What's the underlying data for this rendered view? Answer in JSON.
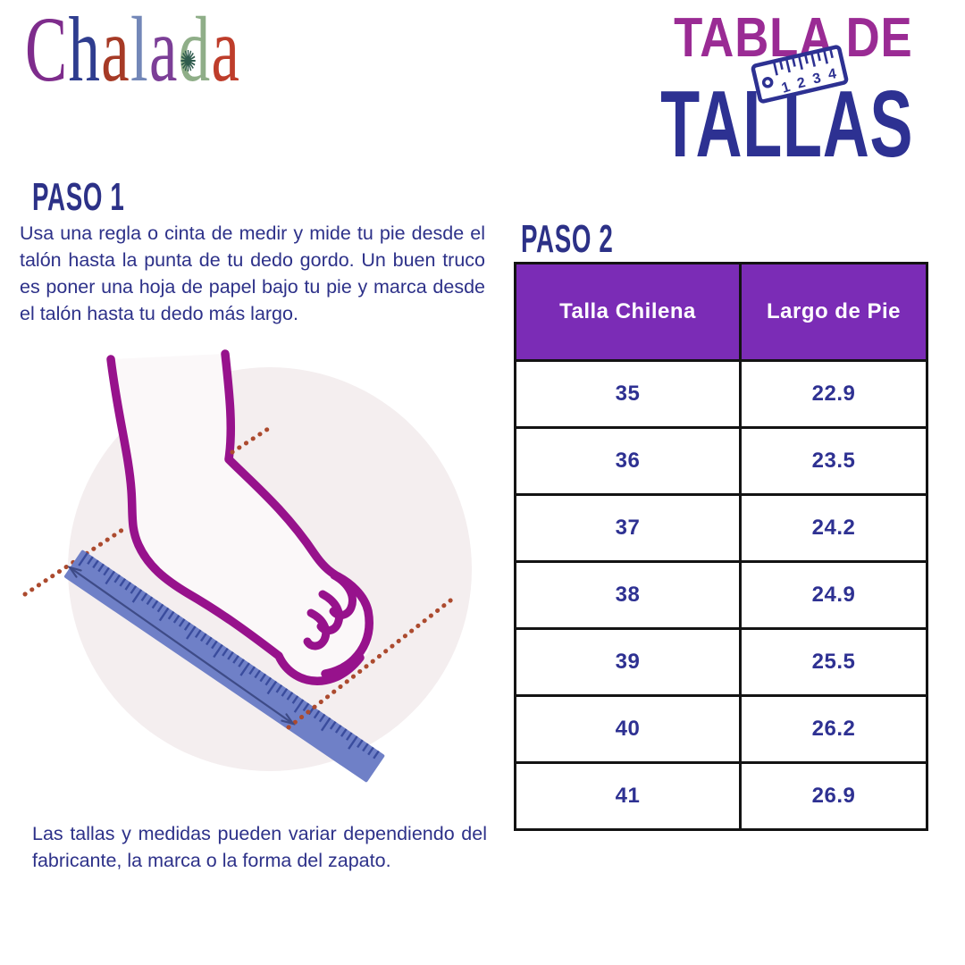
{
  "logo": {
    "name": "Chalada",
    "letters": [
      {
        "char": "C",
        "color": "#7E2C8C"
      },
      {
        "char": "h",
        "color": "#2F3D8F"
      },
      {
        "char": "a",
        "color": "#A63A26"
      },
      {
        "char": "l",
        "color": "#7387B8"
      },
      {
        "char": "a",
        "color": "#7C3F97"
      },
      {
        "char": "d",
        "color": "#8FAE88"
      },
      {
        "char": "a",
        "color": "#BE3D2B"
      }
    ],
    "d_ornament": "✺",
    "d_ornament_color": "#2F5B4D"
  },
  "title": {
    "line1": "TABLA DE",
    "line2": "TALLAS",
    "line1_color": "#9A2B94",
    "line2_color": "#2D3192",
    "ruler_icon_numbers": [
      "1",
      "2",
      "3",
      "4"
    ]
  },
  "step1": {
    "heading": "PASO 1",
    "body": "Usa una regla o cinta de medir y mide tu pie desde el talón hasta la punta de tu dedo gordo. Un buen truco es poner una hoja de papel bajo tu pie y marca desde el talón hasta tu dedo más largo."
  },
  "step2": {
    "heading": "PASO 2"
  },
  "size_table": {
    "headers": [
      "Talla Chilena",
      "Largo de Pie"
    ],
    "rows": [
      {
        "talla": "35",
        "largo": "22.9"
      },
      {
        "talla": "36",
        "largo": "23.5"
      },
      {
        "talla": "37",
        "largo": "24.2"
      },
      {
        "talla": "38",
        "largo": "24.9"
      },
      {
        "talla": "39",
        "largo": "25.5"
      },
      {
        "talla": "40",
        "largo": "26.2"
      },
      {
        "talla": "41",
        "largo": "26.9"
      }
    ]
  },
  "disclaimer": "Las tallas y medidas pueden variar dependiendo del fabricante, la marca o la forma del zapato.",
  "colors": {
    "text_navy": "#2D3189",
    "table_value_navy": "#2E3192",
    "table_header_bg": "#7B2CB6",
    "table_header_text": "#FFFFFF",
    "table_border": "#131313",
    "title_magenta": "#9A2B94",
    "title_navy": "#2D3192",
    "foot_outline_magenta": "#97128C",
    "foot_fill": "#FBF8F9",
    "circle_bg": "#F4EEEF",
    "ruler_blue": "#6F80C7",
    "ruler_tick_blue": "#3A4C9D",
    "dotted_line_red": "#AC4A2E",
    "arrow_navy": "#3E4B87"
  }
}
